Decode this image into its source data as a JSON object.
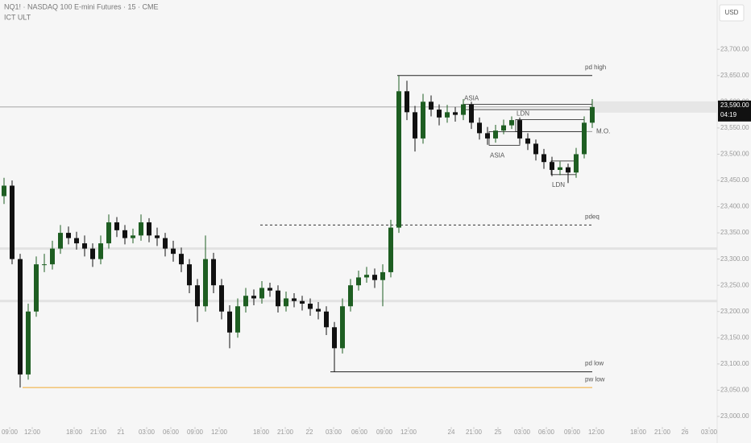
{
  "header": {
    "symbol": "NQ1! · NASDAQ 100 E-mini Futures · 15 · CME",
    "indicator": "ICT ULT",
    "currency": "USD"
  },
  "chart_data": {
    "type": "candlestick",
    "xlim": [
      0,
      89
    ],
    "ylim": [
      22980,
      23794
    ],
    "xticks": [
      {
        "value": 1.2,
        "label": "09:00"
      },
      {
        "value": 4,
        "label": "12:00"
      },
      {
        "value": 9.2,
        "label": "18:00"
      },
      {
        "value": 12.2,
        "label": "21:00"
      },
      {
        "value": 15,
        "label": "21"
      },
      {
        "value": 18.2,
        "label": "03:00"
      },
      {
        "value": 21.2,
        "label": "06:00"
      },
      {
        "value": 24.2,
        "label": "09:00"
      },
      {
        "value": 27.2,
        "label": "12:00"
      },
      {
        "value": 32.4,
        "label": "18:00"
      },
      {
        "value": 35.4,
        "label": "21:00"
      },
      {
        "value": 38.4,
        "label": "22"
      },
      {
        "value": 41.4,
        "label": "03:00"
      },
      {
        "value": 44.6,
        "label": "06:00"
      },
      {
        "value": 47.7,
        "label": "09:00"
      },
      {
        "value": 50.7,
        "label": "12:00"
      },
      {
        "value": 56,
        "label": "24"
      },
      {
        "value": 58.8,
        "label": "21:00"
      },
      {
        "value": 61.8,
        "label": "25"
      },
      {
        "value": 64.8,
        "label": "03:00"
      },
      {
        "value": 67.8,
        "label": "06:00"
      },
      {
        "value": 71,
        "label": "09:00"
      },
      {
        "value": 74,
        "label": "12:00"
      },
      {
        "value": 79.2,
        "label": "18:00"
      },
      {
        "value": 82.2,
        "label": "21:00"
      },
      {
        "value": 85,
        "label": "26"
      },
      {
        "value": 88,
        "label": "03:00"
      }
    ],
    "yticks": [
      {
        "value": 23000,
        "label": "23,000.00"
      },
      {
        "value": 23050,
        "label": "23,050.00"
      },
      {
        "value": 23100,
        "label": "23,100.00"
      },
      {
        "value": 23150,
        "label": "23,150.00"
      },
      {
        "value": 23200,
        "label": "23,200.00"
      },
      {
        "value": 23250,
        "label": "23,250.00"
      },
      {
        "value": 23300,
        "label": "23,300.00"
      },
      {
        "value": 23350,
        "label": "23,350.00"
      },
      {
        "value": 23400,
        "label": "23,400.00"
      },
      {
        "value": 23450,
        "label": "23,450.00"
      },
      {
        "value": 23500,
        "label": "23,500.00"
      },
      {
        "value": 23550,
        "label": "23,550.00"
      },
      {
        "value": 23600,
        "label": "23,600.00"
      },
      {
        "value": 23650,
        "label": "23,650.00"
      },
      {
        "value": 23700,
        "label": "23,700.00"
      }
    ],
    "up_color": "#1e5e22",
    "down_color": "#111111",
    "x": [
      0.5,
      1.5,
      2.5,
      3.5,
      4.5,
      5.5,
      6.5,
      7.5,
      8.5,
      9.5,
      10.5,
      11.5,
      12.5,
      13.5,
      14.5,
      15.5,
      16.5,
      17.5,
      18.5,
      19.5,
      20.5,
      21.5,
      22.5,
      23.5,
      24.5,
      25.5,
      26.5,
      27.5,
      28.5,
      29.5,
      30.5,
      31.5,
      32.5,
      33.5,
      34.5,
      35.5,
      36.5,
      37.5,
      38.5,
      39.5,
      40.5,
      41.5,
      42.5,
      43.5,
      44.5,
      45.5,
      46.5,
      47.5,
      48.5,
      49.5,
      50.5,
      51.5,
      52.5,
      53.5,
      54.5,
      55.5,
      56.5,
      57.5,
      58.5,
      59.5,
      60.5,
      61.5,
      62.5,
      63.5,
      64.5,
      65.5,
      66.5,
      67.5,
      68.5,
      69.5,
      70.5,
      71.5,
      72.5,
      73.5
    ],
    "open": [
      23420,
      23440,
      23300,
      23080,
      23200,
      23290,
      23290,
      23320,
      23350,
      23340,
      23330,
      23320,
      23300,
      23330,
      23370,
      23355,
      23340,
      23345,
      23370,
      23345,
      23340,
      23320,
      23310,
      23290,
      23250,
      23210,
      23300,
      23250,
      23200,
      23160,
      23210,
      23230,
      23225,
      23245,
      23240,
      23210,
      23225,
      23220,
      23215,
      23205,
      23200,
      23170,
      23130,
      23210,
      23250,
      23265,
      23270,
      23260,
      23275,
      23360,
      23620,
      23580,
      23530,
      23600,
      23585,
      23570,
      23580,
      23575,
      23595,
      23560,
      23540,
      23530,
      23545,
      23555,
      23565,
      23530,
      23520,
      23500,
      23485,
      23470,
      23475,
      23465,
      23500,
      23560
    ],
    "high": [
      23455,
      23450,
      23310,
      23215,
      23305,
      23310,
      23335,
      23365,
      23362,
      23352,
      23345,
      23330,
      23345,
      23385,
      23380,
      23365,
      23358,
      23385,
      23378,
      23360,
      23350,
      23335,
      23322,
      23300,
      23262,
      23345,
      23312,
      23262,
      23212,
      23225,
      23245,
      23242,
      23258,
      23255,
      23250,
      23238,
      23235,
      23230,
      23225,
      23218,
      23210,
      23180,
      23225,
      23262,
      23278,
      23285,
      23282,
      23290,
      23375,
      23650,
      23640,
      23592,
      23615,
      23612,
      23595,
      23594,
      23590,
      23605,
      23600,
      23570,
      23552,
      23556,
      23566,
      23572,
      23570,
      23540,
      23528,
      23510,
      23495,
      23486,
      23482,
      23512,
      23572,
      23605
    ],
    "low": [
      23405,
      23290,
      23055,
      23070,
      23190,
      23275,
      23280,
      23310,
      23328,
      23318,
      23305,
      23285,
      23290,
      23320,
      23342,
      23328,
      23330,
      23335,
      23332,
      23325,
      23305,
      23295,
      23275,
      23235,
      23180,
      23200,
      23235,
      23185,
      23130,
      23150,
      23198,
      23212,
      23215,
      23228,
      23198,
      23200,
      23208,
      23202,
      23192,
      23185,
      23155,
      23085,
      23120,
      23200,
      23240,
      23255,
      23245,
      23210,
      23265,
      23350,
      23565,
      23505,
      23520,
      23572,
      23555,
      23560,
      23562,
      23565,
      23548,
      23528,
      23518,
      23522,
      23538,
      23548,
      23520,
      23508,
      23488,
      23472,
      23458,
      23460,
      23445,
      23455,
      23492,
      23550
    ],
    "close": [
      23440,
      23300,
      23080,
      23200,
      23290,
      23290,
      23320,
      23350,
      23340,
      23330,
      23320,
      23300,
      23330,
      23370,
      23355,
      23340,
      23345,
      23370,
      23345,
      23340,
      23320,
      23310,
      23290,
      23250,
      23210,
      23300,
      23250,
      23200,
      23160,
      23210,
      23230,
      23225,
      23245,
      23240,
      23210,
      23225,
      23220,
      23215,
      23205,
      23200,
      23170,
      23130,
      23210,
      23250,
      23265,
      23270,
      23260,
      23275,
      23360,
      23620,
      23580,
      23530,
      23600,
      23585,
      23570,
      23580,
      23575,
      23595,
      23560,
      23540,
      23530,
      23545,
      23555,
      23565,
      23530,
      23520,
      23500,
      23485,
      23470,
      23475,
      23465,
      23500,
      23560,
      23590
    ],
    "levels": [
      {
        "label": "pd high",
        "value": 23650,
        "from": 49.3,
        "to": 73.5,
        "color": "#222222",
        "dashed": false
      },
      {
        "label": "pdeq",
        "value": 23365,
        "from": 32.3,
        "to": 73.5,
        "color": "#333333",
        "dashed": true
      },
      {
        "label": "pd low",
        "value": 23085,
        "from": 41,
        "to": 73.5,
        "color": "#222222",
        "dashed": false
      },
      {
        "label": "pw low",
        "value": 23055,
        "from": 2.8,
        "to": 73.5,
        "color": "#f0a830",
        "dashed": false
      },
      {
        "label": "M.O.",
        "value": 23543,
        "from": 64,
        "to": 73.5,
        "color": "#999999",
        "dashed": false
      }
    ],
    "bands": [
      23320,
      23220
    ],
    "boxes": [
      {
        "label": "ASIA",
        "x": [
          57.5,
          73.5
        ],
        "y": [
          23585,
          23595
        ],
        "side": "above"
      },
      {
        "label": "LDN",
        "x": [
          64,
          72.5
        ],
        "y": [
          23543,
          23566
        ],
        "side": "above"
      },
      {
        "label": "ASIA",
        "x": [
          60.7,
          64.5
        ],
        "y": [
          23517,
          23543
        ],
        "side": "below"
      },
      {
        "label": "LDN",
        "x": [
          68.4,
          71.5
        ],
        "y": [
          23461,
          23487
        ],
        "side": "below"
      }
    ],
    "last_price": {
      "value": 23590,
      "label": "23,590.00",
      "countdown": "04:19"
    }
  }
}
